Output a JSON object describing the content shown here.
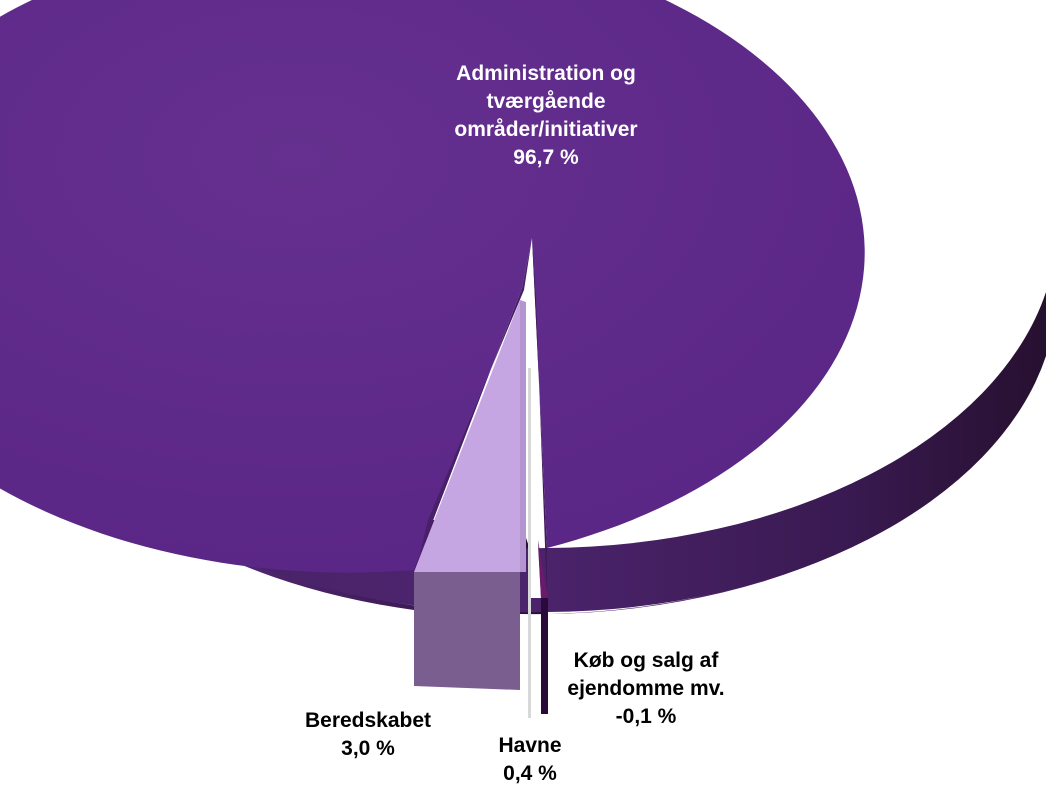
{
  "chart_data": {
    "type": "pie",
    "title": "",
    "style": "3d-exploded",
    "slices": [
      {
        "name_lines": [
          "Administration og",
          "tværgående",
          "områder/initiativer"
        ],
        "value_label": "96,7 %",
        "value": 96.7,
        "color": "#5e2a8a",
        "label_color": "#ffffff"
      },
      {
        "name_lines": [
          "Beredskabet"
        ],
        "value_label": "3,0 %",
        "value": 3.0,
        "color": "#c6a6e2",
        "label_color": "#000000"
      },
      {
        "name_lines": [
          "Havne"
        ],
        "value_label": "0,4 %",
        "value": 0.4,
        "color": "#2a0a3a",
        "label_color": "#000000"
      },
      {
        "name_lines": [
          "Køb og salg af",
          "ejendomme mv."
        ],
        "value_label": "-0,1 %",
        "value": -0.1,
        "color": "#6a1a6a",
        "label_color": "#000000"
      }
    ]
  }
}
